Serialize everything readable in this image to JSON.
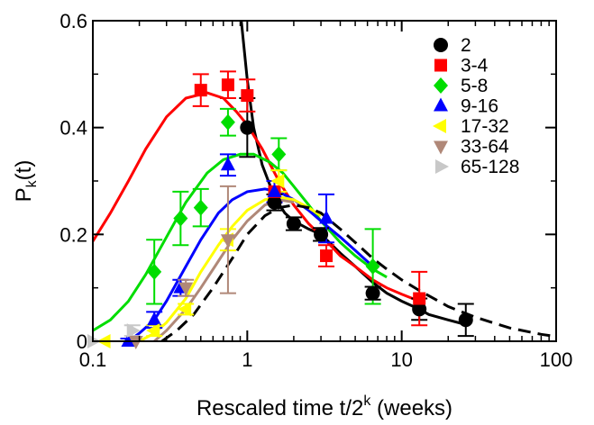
{
  "chart_data": {
    "type": "scatter",
    "title": "",
    "xlabel": {
      "main": "Rescaled time t/2",
      "sup": "k",
      "rest": " (weeks)"
    },
    "ylabel": {
      "main": "P",
      "sub": "k",
      "rest": "(t)"
    },
    "xscale": "log",
    "xlim": [
      0.1,
      100
    ],
    "ylim": [
      0,
      0.6
    ],
    "xticks": [
      {
        "v": 0.1,
        "label": "0.1"
      },
      {
        "v": 1,
        "label": "1"
      },
      {
        "v": 10,
        "label": "10"
      },
      {
        "v": 100,
        "label": "100"
      }
    ],
    "yticks": [
      {
        "v": 0,
        "label": "0"
      },
      {
        "v": 0.2,
        "label": "0.2"
      },
      {
        "v": 0.4,
        "label": "0.4"
      },
      {
        "v": 0.6,
        "label": "0.6"
      }
    ],
    "legend_position": "top-right",
    "series": [
      {
        "name": "2",
        "marker": "circle",
        "color": "#000000",
        "points": [
          [
            1.0,
            0.4,
            0.055
          ],
          [
            1.5,
            0.26,
            0.015
          ],
          [
            2.0,
            0.22,
            0.012
          ],
          [
            3.0,
            0.2,
            0.012
          ],
          [
            6.5,
            0.09,
            0.012
          ],
          [
            13,
            0.06,
            0.02
          ],
          [
            26,
            0.04,
            0.03
          ]
        ]
      },
      {
        "name": "3-4",
        "marker": "square",
        "color": "#ff0000",
        "points": [
          [
            0.5,
            0.47,
            0.03
          ],
          [
            0.75,
            0.48,
            0.025
          ],
          [
            1.0,
            0.46,
            0.03
          ],
          [
            1.5,
            0.28,
            0.02
          ],
          [
            3.25,
            0.16,
            0.02
          ],
          [
            13,
            0.08,
            0.05
          ]
        ]
      },
      {
        "name": "5-8",
        "marker": "diamond",
        "color": "#00dd00",
        "points": [
          [
            0.25,
            0.13,
            0.06
          ],
          [
            0.37,
            0.23,
            0.05
          ],
          [
            0.5,
            0.25,
            0.035
          ],
          [
            0.75,
            0.41,
            0.025
          ],
          [
            1.6,
            0.35,
            0.03
          ],
          [
            6.5,
            0.14,
            0.07
          ]
        ]
      },
      {
        "name": "9-16",
        "marker": "triangle-up",
        "color": "#0000ff",
        "points": [
          [
            0.17,
            0.0,
            0.005
          ],
          [
            0.25,
            0.04,
            0.015
          ],
          [
            0.37,
            0.1,
            0.015
          ],
          [
            0.75,
            0.33,
            0.02
          ],
          [
            1.5,
            0.28,
            0.02
          ],
          [
            3.25,
            0.23,
            0.045
          ]
        ]
      },
      {
        "name": "17-32",
        "marker": "triangle-left",
        "color": "#ffff00",
        "points": [
          [
            0.12,
            0.0,
            0.0
          ],
          [
            0.25,
            0.02,
            0.01
          ],
          [
            0.4,
            0.06,
            0.01
          ],
          [
            0.75,
            0.19,
            0.02
          ],
          [
            1.6,
            0.3,
            0.02
          ]
        ]
      },
      {
        "name": "33-64",
        "marker": "triangle-down",
        "color": "#b08878",
        "points": [
          [
            0.19,
            0.0,
            0.0
          ],
          [
            0.4,
            0.1,
            0.015
          ],
          [
            0.75,
            0.19,
            0.1
          ]
        ]
      },
      {
        "name": "65-128",
        "marker": "triangle-right",
        "color": "#c8c8c8",
        "points": [
          [
            0.1,
            0.0,
            0.0
          ],
          [
            0.18,
            0.02,
            0.01
          ]
        ]
      }
    ],
    "curves": [
      {
        "series": "2",
        "color": "#000000",
        "dash": false,
        "points": [
          [
            0.9,
            0.62
          ],
          [
            1.0,
            0.49
          ],
          [
            1.1,
            0.4
          ],
          [
            1.25,
            0.33
          ],
          [
            1.5,
            0.27
          ],
          [
            1.75,
            0.24
          ],
          [
            2.0,
            0.225
          ],
          [
            2.5,
            0.21
          ],
          [
            3.0,
            0.2
          ],
          [
            4.0,
            0.165
          ],
          [
            5.0,
            0.14
          ],
          [
            6.5,
            0.11
          ],
          [
            8.0,
            0.09
          ],
          [
            10,
            0.075
          ],
          [
            13,
            0.06
          ],
          [
            15,
            0.05
          ],
          [
            20,
            0.04
          ],
          [
            27,
            0.03
          ]
        ]
      },
      {
        "series": "3-4",
        "color": "#ff0000",
        "dash": false,
        "points": [
          [
            0.1,
            0.187
          ],
          [
            0.13,
            0.24
          ],
          [
            0.17,
            0.3
          ],
          [
            0.22,
            0.36
          ],
          [
            0.3,
            0.42
          ],
          [
            0.4,
            0.455
          ],
          [
            0.55,
            0.465
          ],
          [
            0.7,
            0.455
          ],
          [
            0.85,
            0.43
          ],
          [
            1.0,
            0.405
          ],
          [
            1.25,
            0.36
          ],
          [
            1.6,
            0.3
          ],
          [
            2.0,
            0.255
          ],
          [
            2.5,
            0.22
          ],
          [
            3.2,
            0.19
          ],
          [
            4.0,
            0.16
          ],
          [
            5.0,
            0.14
          ],
          [
            6.5,
            0.115
          ],
          [
            8.0,
            0.1
          ],
          [
            10,
            0.088
          ],
          [
            13,
            0.075
          ]
        ]
      },
      {
        "series": "5-8",
        "color": "#00dd00",
        "dash": false,
        "points": [
          [
            0.1,
            0.02
          ],
          [
            0.13,
            0.04
          ],
          [
            0.17,
            0.075
          ],
          [
            0.22,
            0.125
          ],
          [
            0.3,
            0.195
          ],
          [
            0.4,
            0.26
          ],
          [
            0.55,
            0.315
          ],
          [
            0.7,
            0.34
          ],
          [
            0.9,
            0.35
          ],
          [
            1.1,
            0.35
          ],
          [
            1.4,
            0.335
          ],
          [
            1.7,
            0.315
          ],
          [
            2.0,
            0.29
          ],
          [
            2.5,
            0.255
          ],
          [
            3.0,
            0.225
          ],
          [
            4.0,
            0.185
          ],
          [
            5.0,
            0.16
          ],
          [
            6.5,
            0.135
          ],
          [
            8.0,
            0.12
          ]
        ]
      },
      {
        "series": "9-16",
        "color": "#0000ff",
        "dash": false,
        "points": [
          [
            0.17,
            0.0
          ],
          [
            0.2,
            0.015
          ],
          [
            0.25,
            0.04
          ],
          [
            0.3,
            0.075
          ],
          [
            0.4,
            0.14
          ],
          [
            0.5,
            0.19
          ],
          [
            0.65,
            0.24
          ],
          [
            0.8,
            0.265
          ],
          [
            1.0,
            0.28
          ],
          [
            1.3,
            0.285
          ],
          [
            1.6,
            0.28
          ],
          [
            2.0,
            0.265
          ],
          [
            2.5,
            0.245
          ],
          [
            3.0,
            0.225
          ],
          [
            4.0,
            0.195
          ],
          [
            5.0,
            0.17
          ],
          [
            6.5,
            0.14
          ]
        ]
      },
      {
        "series": "17-32",
        "color": "#ffff00",
        "dash": false,
        "points": [
          [
            0.2,
            0.0
          ],
          [
            0.25,
            0.015
          ],
          [
            0.3,
            0.035
          ],
          [
            0.4,
            0.08
          ],
          [
            0.5,
            0.13
          ],
          [
            0.65,
            0.18
          ],
          [
            0.8,
            0.215
          ],
          [
            1.0,
            0.245
          ],
          [
            1.3,
            0.265
          ],
          [
            1.6,
            0.27
          ],
          [
            2.0,
            0.265
          ],
          [
            2.5,
            0.25
          ],
          [
            3.0,
            0.235
          ]
        ]
      },
      {
        "series": "33-64",
        "color": "#b08878",
        "dash": false,
        "points": [
          [
            0.25,
            0.0
          ],
          [
            0.3,
            0.02
          ],
          [
            0.4,
            0.06
          ],
          [
            0.5,
            0.1
          ],
          [
            0.65,
            0.15
          ],
          [
            0.8,
            0.19
          ],
          [
            1.0,
            0.225
          ],
          [
            1.3,
            0.255
          ],
          [
            1.6,
            0.265
          ],
          [
            2.0,
            0.26
          ]
        ]
      },
      {
        "series": "65-128",
        "color": "#000000",
        "dash": true,
        "points": [
          [
            0.28,
            0.0
          ],
          [
            0.35,
            0.02
          ],
          [
            0.45,
            0.05
          ],
          [
            0.6,
            0.1
          ],
          [
            0.8,
            0.155
          ],
          [
            1.0,
            0.2
          ],
          [
            1.3,
            0.235
          ],
          [
            1.6,
            0.25
          ],
          [
            2.0,
            0.255
          ],
          [
            2.5,
            0.25
          ],
          [
            3.0,
            0.24
          ],
          [
            4.0,
            0.21
          ],
          [
            5.0,
            0.185
          ],
          [
            6.5,
            0.155
          ],
          [
            8.0,
            0.135
          ],
          [
            10,
            0.115
          ],
          [
            13,
            0.095
          ],
          [
            20,
            0.065
          ],
          [
            30,
            0.045
          ],
          [
            50,
            0.025
          ],
          [
            80,
            0.013
          ],
          [
            100,
            0.009
          ]
        ]
      }
    ]
  }
}
